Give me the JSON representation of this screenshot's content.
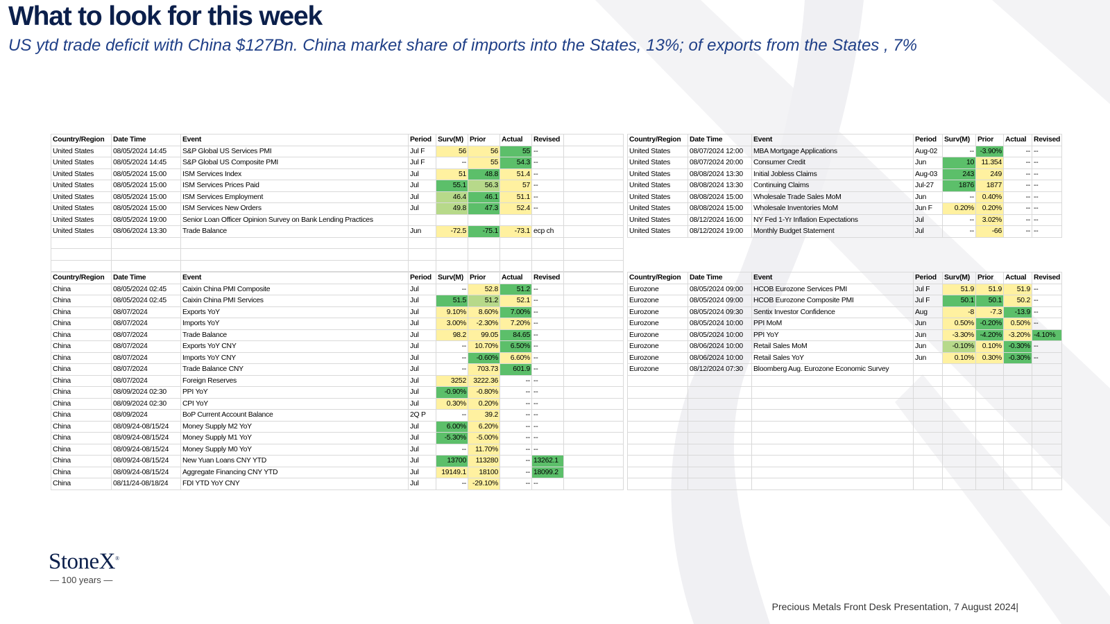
{
  "header": {
    "title": "What to look for this week",
    "subtitle": "US ytd trade deficit with China $127Bn.  China market share of imports into the States, 13%; of exports from the States , 7%"
  },
  "columns": [
    "Country/Region",
    "Date Time",
    "Event",
    "Period",
    "Surv(M)",
    "Prior",
    "Actual",
    "Revised"
  ],
  "us_left": [
    {
      "country": "United States",
      "dt": "08/05/2024 14:45",
      "event": "S&P Global US Services PMI",
      "period": "Jul F",
      "surv": "56",
      "prior": "56",
      "actual": "55",
      "revised": "--"
    },
    {
      "country": "United States",
      "dt": "08/05/2024 14:45",
      "event": "S&P Global US Composite PMI",
      "period": "Jul F",
      "surv": "--",
      "prior": "55",
      "actual": "54.3",
      "revised": "--"
    },
    {
      "country": "United States",
      "dt": "08/05/2024 15:00",
      "event": "ISM Services Index",
      "period": "Jul",
      "surv": "51",
      "prior": "48.8",
      "actual": "51.4",
      "revised": "--"
    },
    {
      "country": "United States",
      "dt": "08/05/2024 15:00",
      "event": "ISM Services Prices Paid",
      "period": "Jul",
      "surv": "55.1",
      "prior": "56.3",
      "actual": "57",
      "revised": "--"
    },
    {
      "country": "United States",
      "dt": "08/05/2024 15:00",
      "event": "ISM Services Employment",
      "period": "Jul",
      "surv": "46.4",
      "prior": "46.1",
      "actual": "51.1",
      "revised": "--"
    },
    {
      "country": "United States",
      "dt": "08/05/2024 15:00",
      "event": "ISM Services New Orders",
      "period": "Jul",
      "surv": "49.8",
      "prior": "47.3",
      "actual": "52.4",
      "revised": "--"
    },
    {
      "country": "United States",
      "dt": "08/05/2024 19:00",
      "event": "Senior Loan Officer Opinion Survey on Bank Lending Practices",
      "period": "",
      "surv": "",
      "prior": "",
      "actual": "",
      "revised": ""
    },
    {
      "country": "United States",
      "dt": "08/06/2024 13:30",
      "event": "Trade Balance",
      "period": "Jun",
      "surv": "-72.5",
      "prior": "-75.1",
      "actual": "-73.1",
      "revised": "ecp ch"
    }
  ],
  "us_right": [
    {
      "country": "United States",
      "dt": "08/07/2024 12:00",
      "event": "MBA Mortgage Applications",
      "period": "Aug-02",
      "surv": "--",
      "prior": "-3.90%",
      "actual": "--",
      "revised": "--"
    },
    {
      "country": "United States",
      "dt": "08/07/2024 20:00",
      "event": "Consumer Credit",
      "period": "Jun",
      "surv": "10",
      "prior": "11.354",
      "actual": "--",
      "revised": "--"
    },
    {
      "country": "United States",
      "dt": "08/08/2024 13:30",
      "event": "Initial Jobless Claims",
      "period": "Aug-03",
      "surv": "243",
      "prior": "249",
      "actual": "--",
      "revised": "--"
    },
    {
      "country": "United States",
      "dt": "08/08/2024 13:30",
      "event": "Continuing Claims",
      "period": "Jul-27",
      "surv": "1876",
      "prior": "1877",
      "actual": "--",
      "revised": "--"
    },
    {
      "country": "United States",
      "dt": "08/08/2024 15:00",
      "event": "Wholesale Trade Sales MoM",
      "period": "Jun",
      "surv": "--",
      "prior": "0.40%",
      "actual": "--",
      "revised": "--"
    },
    {
      "country": "United States",
      "dt": "08/08/2024 15:00",
      "event": "Wholesale Inventories MoM",
      "period": "Jun F",
      "surv": "0.20%",
      "prior": "0.20%",
      "actual": "--",
      "revised": "--"
    },
    {
      "country": "United States",
      "dt": "08/12/2024 16:00",
      "event": "NY Fed 1-Yr Inflation Expectations",
      "period": "Jul",
      "surv": "--",
      "prior": "3.02%",
      "actual": "--",
      "revised": "--"
    },
    {
      "country": "United States",
      "dt": "08/12/2024 19:00",
      "event": "Monthly Budget Statement",
      "period": "Jul",
      "surv": "--",
      "prior": "-66",
      "actual": "--",
      "revised": "--"
    }
  ],
  "china": [
    {
      "country": "China",
      "dt": "08/05/2024 02:45",
      "event": "Caixin China PMI Composite",
      "period": "Jul",
      "surv": "--",
      "prior": "52.8",
      "actual": "51.2",
      "revised": "--"
    },
    {
      "country": "China",
      "dt": "08/05/2024 02:45",
      "event": "Caixin China PMI Services",
      "period": "Jul",
      "surv": "51.5",
      "prior": "51.2",
      "actual": "52.1",
      "revised": "--"
    },
    {
      "country": "China",
      "dt": "08/07/2024",
      "event": "Exports YoY",
      "period": "Jul",
      "surv": "9.10%",
      "prior": "8.60%",
      "actual": "7.00%",
      "revised": "--"
    },
    {
      "country": "China",
      "dt": "08/07/2024",
      "event": "Imports YoY",
      "period": "Jul",
      "surv": "3.00%",
      "prior": "-2.30%",
      "actual": "7.20%",
      "revised": "--"
    },
    {
      "country": "China",
      "dt": "08/07/2024",
      "event": "Trade Balance",
      "period": "Jul",
      "surv": "98.2",
      "prior": "99.05",
      "actual": "84.65",
      "revised": "--"
    },
    {
      "country": "China",
      "dt": "08/07/2024",
      "event": "Exports YoY CNY",
      "period": "Jul",
      "surv": "--",
      "prior": "10.70%",
      "actual": "6.50%",
      "revised": "--"
    },
    {
      "country": "China",
      "dt": "08/07/2024",
      "event": "Imports YoY CNY",
      "period": "Jul",
      "surv": "--",
      "prior": "-0.60%",
      "actual": "6.60%",
      "revised": "--"
    },
    {
      "country": "China",
      "dt": "08/07/2024",
      "event": "Trade Balance CNY",
      "period": "Jul",
      "surv": "--",
      "prior": "703.73",
      "actual": "601.9",
      "revised": "--"
    },
    {
      "country": "China",
      "dt": "08/07/2024",
      "event": "Foreign Reserves",
      "period": "Jul",
      "surv": "3252",
      "prior": "3222.36",
      "actual": "--",
      "revised": "--"
    },
    {
      "country": "China",
      "dt": "08/09/2024 02:30",
      "event": "PPI YoY",
      "period": "Jul",
      "surv": "-0.90%",
      "prior": "-0.80%",
      "actual": "--",
      "revised": "--"
    },
    {
      "country": "China",
      "dt": "08/09/2024 02:30",
      "event": "CPI YoY",
      "period": "Jul",
      "surv": "0.30%",
      "prior": "0.20%",
      "actual": "--",
      "revised": "--"
    },
    {
      "country": "China",
      "dt": "08/09/2024",
      "event": "BoP Current Account Balance",
      "period": "2Q P",
      "surv": "--",
      "prior": "39.2",
      "actual": "--",
      "revised": "--"
    },
    {
      "country": "China",
      "dt": "08/09/24-08/15/24",
      "event": "Money Supply M2 YoY",
      "period": "Jul",
      "surv": "6.00%",
      "prior": "6.20%",
      "actual": "--",
      "revised": "--"
    },
    {
      "country": "China",
      "dt": "08/09/24-08/15/24",
      "event": "Money Supply M1 YoY",
      "period": "Jul",
      "surv": "-5.30%",
      "prior": "-5.00%",
      "actual": "--",
      "revised": "--"
    },
    {
      "country": "China",
      "dt": "08/09/24-08/15/24",
      "event": "Money Supply M0 YoY",
      "period": "Jul",
      "surv": "--",
      "prior": "11.70%",
      "actual": "--",
      "revised": "--"
    },
    {
      "country": "China",
      "dt": "08/09/24-08/15/24",
      "event": "New Yuan Loans CNY YTD",
      "period": "Jul",
      "surv": "13700",
      "prior": "113280",
      "actual": "--",
      "revised": "13262.1"
    },
    {
      "country": "China",
      "dt": "08/09/24-08/15/24",
      "event": "Aggregate Financing CNY YTD",
      "period": "Jul",
      "surv": "19149.1",
      "prior": "18100",
      "actual": "--",
      "revised": "18099.2"
    },
    {
      "country": "China",
      "dt": "08/11/24-08/18/24",
      "event": "FDI YTD YoY CNY",
      "period": "Jul",
      "surv": "--",
      "prior": "-29.10%",
      "actual": "--",
      "revised": "--"
    }
  ],
  "eurozone": [
    {
      "country": "Eurozone",
      "dt": "08/05/2024 09:00",
      "event": "HCOB Eurozone Services PMI",
      "period": "Jul F",
      "surv": "51.9",
      "prior": "51.9",
      "actual": "51.9",
      "revised": "--"
    },
    {
      "country": "Eurozone",
      "dt": "08/05/2024 09:00",
      "event": "HCOB Eurozone Composite PMI",
      "period": "Jul F",
      "surv": "50.1",
      "prior": "50.1",
      "actual": "50.2",
      "revised": "--"
    },
    {
      "country": "Eurozone",
      "dt": "08/05/2024 09:30",
      "event": "Sentix Investor Confidence",
      "period": "Aug",
      "surv": "-8",
      "prior": "-7.3",
      "actual": "-13.9",
      "revised": "--"
    },
    {
      "country": "Eurozone",
      "dt": "08/05/2024 10:00",
      "event": "PPI MoM",
      "period": "Jun",
      "surv": "0.50%",
      "prior": "-0.20%",
      "actual": "0.50%",
      "revised": "--"
    },
    {
      "country": "Eurozone",
      "dt": "08/05/2024 10:00",
      "event": "PPI YoY",
      "period": "Jun",
      "surv": "-3.30%",
      "prior": "-4.20%",
      "actual": "-3.20%",
      "revised": "-4.10%"
    },
    {
      "country": "Eurozone",
      "dt": "08/06/2024 10:00",
      "event": "Retail Sales MoM",
      "period": "Jun",
      "surv": "-0.10%",
      "prior": "0.10%",
      "actual": "-0.30%",
      "revised": "--"
    },
    {
      "country": "Eurozone",
      "dt": "08/06/2024 10:00",
      "event": "Retail Sales YoY",
      "period": "Jun",
      "surv": "0.10%",
      "prior": "0.30%",
      "actual": "-0.30%",
      "revised": "--"
    },
    {
      "country": "Eurozone",
      "dt": "08/12/2024 07:30",
      "event": "Bloomberg Aug. Eurozone Economic Survey",
      "period": "",
      "surv": "",
      "prior": "",
      "actual": "",
      "revised": ""
    }
  ],
  "logo": {
    "name": "StoneX",
    "tagline": "— 100 years —"
  },
  "footer": {
    "text": "Precious Metals Front Desk Presentation, 7 August 2024|"
  }
}
